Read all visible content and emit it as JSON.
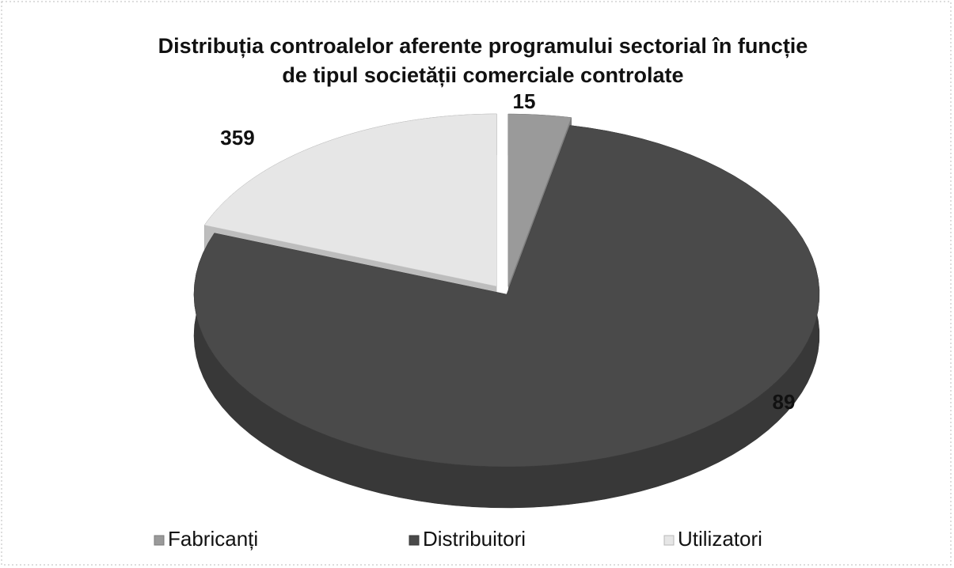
{
  "chart_data": {
    "type": "pie3d",
    "title": [
      "Distribuția controalelor aferente programului sectorial în funcție",
      "de tipul societății comerciale controlate"
    ],
    "categories": [
      "Fabricanți",
      "Distribuitori",
      "Utilizatori"
    ],
    "values": [
      15,
      359,
      89
    ],
    "colors": [
      "#9a9a9a",
      "#4a4a4a",
      "#e6e6e6"
    ],
    "legend": "bottom"
  }
}
